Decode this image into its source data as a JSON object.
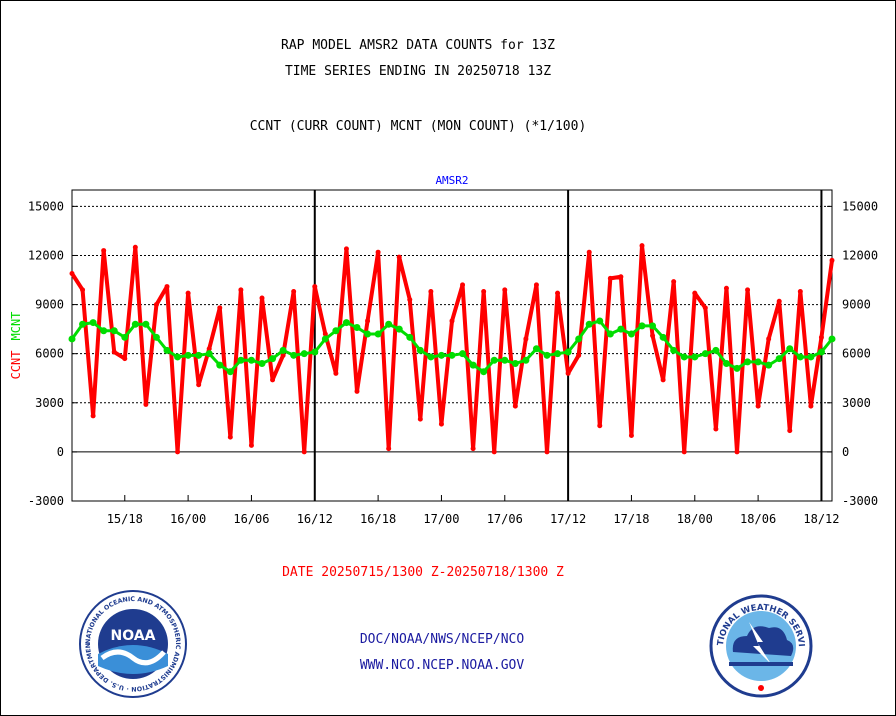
{
  "header": {
    "title_line1": "RAP MODEL AMSR2 DATA COUNTS for 13Z",
    "title_line2": "TIME SERIES ENDING IN 20250718 13Z",
    "subtitle": "CCNT (CURR COUNT) MCNT (MON COUNT) (*1/100)"
  },
  "footer": {
    "date_range": "DATE 20250715/1300 Z-20250718/1300 Z",
    "org": "DOC/NOAA/NWS/NCEP/NCO",
    "url": "WWW.NCO.NCEP.NOAA.GOV"
  },
  "logos": {
    "noaa_text": "NOAA",
    "noaa_ring": "NATIONAL OCEANIC AND ATMOSPHERIC ADMINISTRATION · U.S. DEPARTMENT OF COMMERCE ·",
    "nws_ring": "NATIONAL WEATHER SERVICE"
  },
  "colors": {
    "ccnt": "#ff0000",
    "mcnt": "#00dd00",
    "panel_title": "#0000ff",
    "link": "#1a1aa0"
  },
  "chart_data": {
    "type": "line",
    "panel_title": "AMSR2",
    "ylabel_parts": [
      "CCNT",
      "MCNT"
    ],
    "ylim": [
      -3000,
      16000
    ],
    "yticks": [
      -3000,
      0,
      3000,
      6000,
      9000,
      12000,
      15000
    ],
    "grid": true,
    "x_range_hours": [
      0,
      72
    ],
    "xtick_hours": [
      5,
      11,
      17,
      23,
      29,
      35,
      41,
      47,
      53,
      59,
      65,
      71
    ],
    "xtick_labels": [
      "15/18",
      "16/00",
      "16/06",
      "16/12",
      "16/18",
      "17/00",
      "17/06",
      "17/12",
      "17/18",
      "18/00",
      "18/06",
      "18/12"
    ],
    "day_boundaries_hours": [
      23,
      47,
      71
    ],
    "series": [
      {
        "name": "CCNT",
        "values": [
          10900,
          9900,
          2200,
          12300,
          6100,
          5700,
          12500,
          2900,
          9000,
          10100,
          0,
          9700,
          4100,
          6300,
          8800,
          900,
          9900,
          400,
          9400,
          4400,
          5900,
          9800,
          0,
          10100,
          7200,
          4800,
          12400,
          3700,
          8000,
          12200,
          200,
          11900,
          9300,
          2000,
          9800,
          1700,
          8000,
          10200,
          200,
          9800,
          0,
          9900,
          2800,
          6900,
          10200,
          0,
          9700,
          4800,
          5900,
          12200,
          1600,
          10600,
          10700,
          1000,
          12600,
          7100,
          4400,
          10400,
          0,
          9700,
          8800,
          1400,
          10000,
          0,
          9900,
          2800,
          6900,
          9200,
          1300,
          9800,
          2800,
          7000,
          11700
        ]
      },
      {
        "name": "MCNT",
        "values": [
          6900,
          7800,
          7900,
          7400,
          7400,
          7000,
          7800,
          7800,
          7000,
          6200,
          5800,
          5900,
          5900,
          6000,
          5300,
          4900,
          5600,
          5600,
          5400,
          5700,
          6200,
          5900,
          6000,
          6100,
          6900,
          7400,
          7900,
          7600,
          7200,
          7200,
          7800,
          7500,
          7000,
          6200,
          5800,
          5900,
          5900,
          6000,
          5300,
          4900,
          5600,
          5600,
          5400,
          5600,
          6300,
          5900,
          6000,
          6100,
          6900,
          7800,
          8000,
          7200,
          7500,
          7200,
          7700,
          7700,
          7000,
          6200,
          5800,
          5800,
          6000,
          6200,
          5400,
          5100,
          5500,
          5500,
          5300,
          5700,
          6300,
          5800,
          5800,
          6100,
          6900
        ]
      }
    ]
  }
}
